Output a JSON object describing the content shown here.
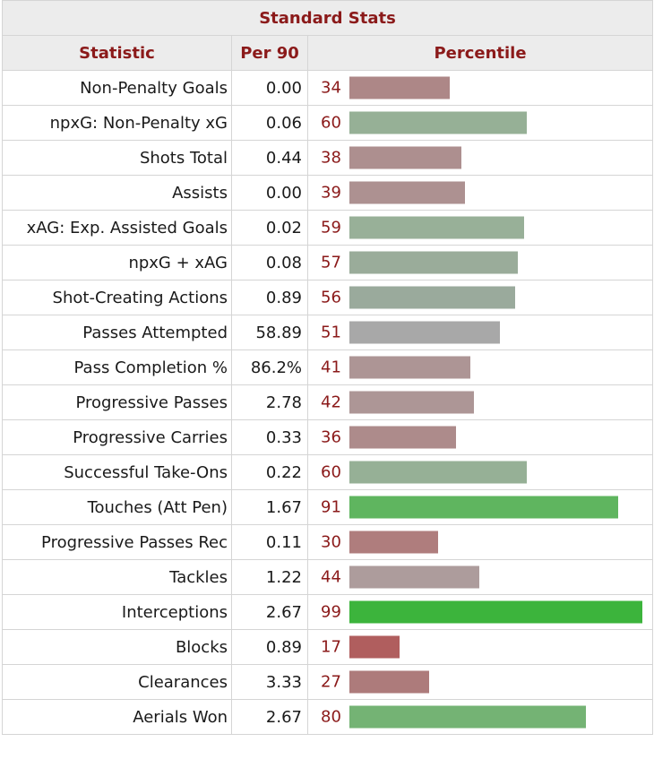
{
  "table": {
    "caption": "Standard Stats",
    "headers": {
      "statistic": "Statistic",
      "per90": "Per 90",
      "percentile": "Percentile"
    },
    "groups": [
      {
        "rows": [
          {
            "statistic": "Non-Penalty Goals",
            "per90": "0.00",
            "percentile": 34,
            "color": "#ad8787"
          },
          {
            "statistic": "npxG: Non-Penalty xG",
            "per90": "0.06",
            "percentile": 60,
            "color": "#96b096"
          },
          {
            "statistic": "Shots Total",
            "per90": "0.44",
            "percentile": 38,
            "color": "#ad8f8f"
          },
          {
            "statistic": "Assists",
            "per90": "0.00",
            "percentile": 39,
            "color": "#ad9191"
          },
          {
            "statistic": "xAG: Exp. Assisted Goals",
            "per90": "0.02",
            "percentile": 59,
            "color": "#98b098"
          },
          {
            "statistic": "npxG + xAG",
            "per90": "0.08",
            "percentile": 57,
            "color": "#9aac9a"
          },
          {
            "statistic": "Shot-Creating Actions",
            "per90": "0.89",
            "percentile": 56,
            "color": "#9aaa9c"
          }
        ]
      },
      {
        "rows": [
          {
            "statistic": "Passes Attempted",
            "per90": "58.89",
            "percentile": 51,
            "color": "#a8a8a8"
          },
          {
            "statistic": "Pass Completion %",
            "per90": "86.2%",
            "percentile": 41,
            "color": "#ad9595"
          },
          {
            "statistic": "Progressive Passes",
            "per90": "2.78",
            "percentile": 42,
            "color": "#ad9696"
          },
          {
            "statistic": "Progressive Carries",
            "per90": "0.33",
            "percentile": 36,
            "color": "#ad8b8b"
          },
          {
            "statistic": "Successful Take-Ons",
            "per90": "0.22",
            "percentile": 60,
            "color": "#96b096"
          },
          {
            "statistic": "Touches (Att Pen)",
            "per90": "1.67",
            "percentile": 91,
            "color": "#5fb55f"
          },
          {
            "statistic": "Progressive Passes Rec",
            "per90": "0.11",
            "percentile": 30,
            "color": "#af7d7d"
          }
        ]
      },
      {
        "rows": [
          {
            "statistic": "Tackles",
            "per90": "1.22",
            "percentile": 44,
            "color": "#ad9c9c"
          },
          {
            "statistic": "Interceptions",
            "per90": "2.67",
            "percentile": 99,
            "color": "#3cb43c"
          },
          {
            "statistic": "Blocks",
            "per90": "0.89",
            "percentile": 17,
            "color": "#b05e5e"
          },
          {
            "statistic": "Clearances",
            "per90": "3.33",
            "percentile": 27,
            "color": "#ad7b7b"
          },
          {
            "statistic": "Aerials Won",
            "per90": "2.67",
            "percentile": 80,
            "color": "#74b374"
          }
        ]
      }
    ]
  }
}
